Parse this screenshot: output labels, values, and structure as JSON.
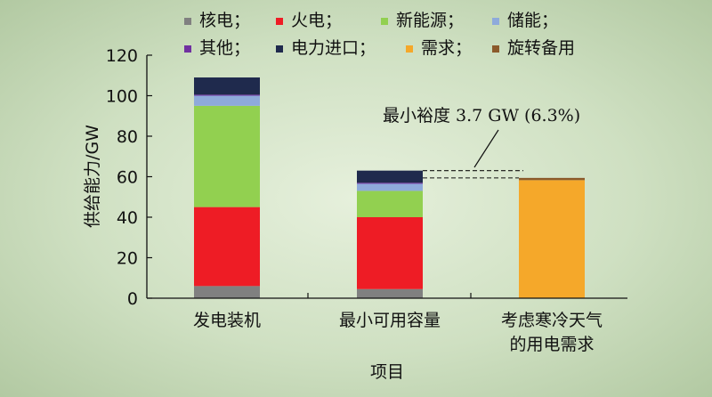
{
  "chart_data": {
    "type": "bar",
    "stacked": true,
    "xlabel": "项目",
    "ylabel": "供给能力/GW",
    "ylim": [
      0,
      120
    ],
    "yticks": [
      0,
      20,
      40,
      60,
      80,
      100,
      120
    ],
    "grid": false,
    "legend_position": "top",
    "categories": [
      "发电装机",
      "最小可用容量",
      "考虑寒冷天气的用电需求"
    ],
    "category_labels": [
      [
        "发电装机"
      ],
      [
        "最小可用容量"
      ],
      [
        "考虑寒冷天气",
        "的用电需求"
      ]
    ],
    "series": [
      {
        "name": "核电",
        "legend_label": "核电；",
        "color": "#808080",
        "values": [
          6,
          4.5,
          0
        ]
      },
      {
        "name": "火电",
        "legend_label": "火电；",
        "color": "#ee1c25",
        "values": [
          39,
          35.5,
          0
        ]
      },
      {
        "name": "新能源",
        "legend_label": "新能源；",
        "color": "#92d050",
        "values": [
          50,
          13,
          0
        ]
      },
      {
        "name": "储能",
        "legend_label": "储能；",
        "color": "#8eaadb",
        "values": [
          5,
          3.5,
          0
        ]
      },
      {
        "name": "其他",
        "legend_label": "其他；",
        "color": "#7030a0",
        "values": [
          0.5,
          0.5,
          0
        ]
      },
      {
        "name": "电力进口",
        "legend_label": "电力进口；",
        "color": "#1f2a4d",
        "values": [
          8.5,
          6,
          0
        ]
      },
      {
        "name": "需求",
        "legend_label": "需求；",
        "color": "#f5a82a",
        "values": [
          0,
          0,
          58.3
        ]
      },
      {
        "name": "旋转备用",
        "legend_label": "旋转备用",
        "color": "#8b5a2b",
        "values": [
          0,
          0,
          1.1
        ]
      }
    ],
    "annotation": {
      "text": "最小裕度 3.7 GW (6.3%)",
      "upper_value": 63,
      "lower_value": 59.4
    }
  }
}
